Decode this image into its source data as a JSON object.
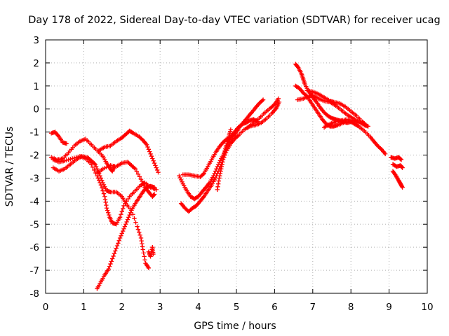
{
  "chart_data": {
    "type": "scatter",
    "title": "Day 178 of 2022, Sidereal Day-to-day VTEC variation (SDTVAR) for receiver ucag",
    "xlabel": "GPS time / hours",
    "ylabel": "SDTVAR / TECUs",
    "xlim": [
      0,
      10
    ],
    "ylim": [
      -8,
      3
    ],
    "xticks": [
      "0",
      "1",
      "2",
      "3",
      "4",
      "5",
      "6",
      "7",
      "8",
      "9",
      "10"
    ],
    "yticks": [
      "3",
      "2",
      "1",
      "0",
      "-1",
      "-2",
      "-3",
      "-4",
      "-5",
      "-6",
      "-7",
      "-8"
    ],
    "grid": true,
    "marker": "plus",
    "color": "#ff0000",
    "series": [
      {
        "points": [
          [
            0.15,
            -1.05
          ],
          [
            0.25,
            -1.0
          ],
          [
            0.35,
            -1.2
          ],
          [
            0.45,
            -1.45
          ],
          [
            0.55,
            -1.5
          ]
        ]
      },
      {
        "points": [
          [
            0.15,
            -2.1
          ],
          [
            0.3,
            -2.2
          ],
          [
            0.45,
            -2.15
          ],
          [
            0.6,
            -1.9
          ],
          [
            0.75,
            -1.6
          ],
          [
            0.9,
            -1.4
          ],
          [
            1.05,
            -1.3
          ],
          [
            1.2,
            -1.55
          ],
          [
            1.35,
            -1.8
          ],
          [
            1.5,
            -2.05
          ],
          [
            1.6,
            -2.35
          ],
          [
            1.7,
            -2.6
          ],
          [
            1.75,
            -2.7
          ],
          [
            1.8,
            -2.5
          ]
        ]
      },
      {
        "points": [
          [
            0.2,
            -2.55
          ],
          [
            0.35,
            -2.7
          ],
          [
            0.5,
            -2.6
          ],
          [
            0.65,
            -2.4
          ],
          [
            0.8,
            -2.2
          ],
          [
            0.95,
            -2.05
          ],
          [
            1.1,
            -2.1
          ],
          [
            1.2,
            -2.25
          ],
          [
            1.3,
            -2.4
          ],
          [
            1.4,
            -2.8
          ],
          [
            1.5,
            -3.2
          ],
          [
            1.6,
            -3.55
          ],
          [
            1.7,
            -3.6
          ],
          [
            1.85,
            -3.6
          ],
          [
            2.0,
            -3.8
          ],
          [
            2.1,
            -4.1
          ],
          [
            2.25,
            -4.4
          ],
          [
            2.4,
            -5.1
          ],
          [
            2.5,
            -5.6
          ],
          [
            2.55,
            -6.1
          ],
          [
            2.62,
            -6.7
          ],
          [
            2.7,
            -6.9
          ]
        ]
      },
      {
        "points": [
          [
            0.2,
            -2.2
          ],
          [
            0.35,
            -2.3
          ],
          [
            0.5,
            -2.25
          ],
          [
            0.7,
            -2.15
          ],
          [
            0.9,
            -2.05
          ],
          [
            1.05,
            -2.15
          ],
          [
            1.2,
            -2.4
          ],
          [
            1.35,
            -2.9
          ],
          [
            1.45,
            -3.3
          ],
          [
            1.55,
            -3.8
          ],
          [
            1.6,
            -4.3
          ],
          [
            1.68,
            -4.7
          ],
          [
            1.75,
            -4.95
          ],
          [
            1.85,
            -5.0
          ],
          [
            1.95,
            -4.7
          ],
          [
            2.05,
            -4.2
          ],
          [
            2.2,
            -3.8
          ],
          [
            2.35,
            -3.55
          ],
          [
            2.5,
            -3.3
          ],
          [
            2.6,
            -3.2
          ],
          [
            2.75,
            -3.4
          ],
          [
            2.9,
            -3.5
          ]
        ]
      },
      {
        "points": [
          [
            1.4,
            -1.8
          ],
          [
            1.55,
            -1.65
          ],
          [
            1.7,
            -1.6
          ],
          [
            1.85,
            -1.4
          ],
          [
            2.0,
            -1.25
          ],
          [
            2.1,
            -1.1
          ],
          [
            2.2,
            -0.95
          ],
          [
            2.3,
            -1.05
          ],
          [
            2.45,
            -1.2
          ],
          [
            2.55,
            -1.35
          ],
          [
            2.65,
            -1.55
          ],
          [
            2.75,
            -1.95
          ],
          [
            2.85,
            -2.35
          ],
          [
            2.95,
            -2.75
          ]
        ]
      },
      {
        "points": [
          [
            1.35,
            -2.8
          ],
          [
            1.5,
            -2.6
          ],
          [
            1.7,
            -2.45
          ],
          [
            1.85,
            -2.5
          ],
          [
            2.0,
            -2.35
          ],
          [
            2.15,
            -2.3
          ],
          [
            2.25,
            -2.45
          ],
          [
            2.35,
            -2.6
          ],
          [
            2.5,
            -3.05
          ],
          [
            2.6,
            -3.4
          ],
          [
            2.7,
            -3.6
          ],
          [
            2.8,
            -3.8
          ],
          [
            2.85,
            -3.7
          ]
        ]
      },
      {
        "points": [
          [
            1.35,
            -7.8
          ],
          [
            1.45,
            -7.5
          ],
          [
            1.55,
            -7.2
          ],
          [
            1.65,
            -6.95
          ],
          [
            1.75,
            -6.5
          ],
          [
            1.85,
            -6.05
          ],
          [
            1.95,
            -5.6
          ],
          [
            2.05,
            -5.2
          ],
          [
            2.15,
            -4.8
          ],
          [
            2.25,
            -4.4
          ],
          [
            2.35,
            -4.1
          ],
          [
            2.45,
            -3.85
          ],
          [
            2.55,
            -3.6
          ],
          [
            2.65,
            -3.4
          ],
          [
            2.75,
            -3.35
          ],
          [
            2.85,
            -3.4
          ]
        ]
      },
      {
        "points": [
          [
            2.7,
            -6.2
          ],
          [
            2.75,
            -6.4
          ],
          [
            2.8,
            -6.0
          ],
          [
            2.82,
            -6.3
          ]
        ]
      },
      {
        "points": [
          [
            3.5,
            -2.9
          ],
          [
            3.6,
            -3.25
          ],
          [
            3.7,
            -3.55
          ],
          [
            3.8,
            -3.8
          ],
          [
            3.9,
            -3.9
          ],
          [
            4.0,
            -3.8
          ],
          [
            4.1,
            -3.6
          ],
          [
            4.2,
            -3.4
          ],
          [
            4.3,
            -3.2
          ],
          [
            4.4,
            -2.9
          ],
          [
            4.5,
            -2.5
          ],
          [
            4.6,
            -2.15
          ],
          [
            4.7,
            -1.85
          ],
          [
            4.8,
            -1.45
          ],
          [
            4.9,
            -1.2
          ],
          [
            5.0,
            -1.0
          ],
          [
            5.1,
            -0.75
          ],
          [
            5.2,
            -0.55
          ],
          [
            5.3,
            -0.35
          ],
          [
            5.4,
            -0.15
          ],
          [
            5.5,
            0.05
          ],
          [
            5.6,
            0.25
          ],
          [
            5.7,
            0.4
          ]
        ]
      },
      {
        "points": [
          [
            3.55,
            -4.1
          ],
          [
            3.65,
            -4.3
          ],
          [
            3.75,
            -4.45
          ],
          [
            3.85,
            -4.3
          ],
          [
            3.95,
            -4.2
          ],
          [
            4.05,
            -4.0
          ],
          [
            4.15,
            -3.8
          ],
          [
            4.25,
            -3.55
          ],
          [
            4.35,
            -3.3
          ],
          [
            4.45,
            -3.0
          ],
          [
            4.55,
            -2.6
          ],
          [
            4.65,
            -2.2
          ],
          [
            4.75,
            -1.8
          ],
          [
            4.85,
            -1.5
          ],
          [
            4.95,
            -1.3
          ],
          [
            5.05,
            -1.15
          ],
          [
            5.2,
            -0.9
          ],
          [
            5.35,
            -0.75
          ],
          [
            5.5,
            -0.7
          ],
          [
            5.65,
            -0.6
          ],
          [
            5.8,
            -0.4
          ],
          [
            5.95,
            -0.15
          ],
          [
            6.05,
            0.05
          ],
          [
            6.12,
            0.3
          ]
        ]
      },
      {
        "points": [
          [
            3.6,
            -2.85
          ],
          [
            3.75,
            -2.85
          ],
          [
            3.9,
            -2.9
          ],
          [
            4.05,
            -2.95
          ],
          [
            4.15,
            -2.8
          ],
          [
            4.25,
            -2.5
          ],
          [
            4.35,
            -2.2
          ],
          [
            4.45,
            -1.9
          ],
          [
            4.55,
            -1.65
          ],
          [
            4.65,
            -1.45
          ],
          [
            4.75,
            -1.3
          ],
          [
            4.85,
            -1.2
          ],
          [
            4.95,
            -1.0
          ],
          [
            5.05,
            -0.8
          ],
          [
            5.15,
            -0.65
          ],
          [
            5.25,
            -0.6
          ],
          [
            5.35,
            -0.5
          ],
          [
            5.45,
            -0.45
          ],
          [
            5.55,
            -0.55
          ]
        ]
      },
      {
        "points": [
          [
            4.5,
            -3.5
          ],
          [
            4.55,
            -3.0
          ],
          [
            4.6,
            -2.6
          ],
          [
            4.65,
            -2.2
          ],
          [
            4.7,
            -1.8
          ],
          [
            4.75,
            -1.5
          ],
          [
            4.8,
            -1.2
          ],
          [
            4.85,
            -0.9
          ]
        ]
      },
      {
        "points": [
          [
            5.3,
            -0.8
          ],
          [
            5.45,
            -0.6
          ],
          [
            5.6,
            -0.4
          ],
          [
            5.75,
            -0.15
          ],
          [
            5.9,
            0.05
          ],
          [
            6.0,
            0.2
          ],
          [
            6.1,
            0.45
          ]
        ]
      },
      {
        "points": [
          [
            6.55,
            1.95
          ],
          [
            6.62,
            1.8
          ],
          [
            6.7,
            1.55
          ],
          [
            6.75,
            1.3
          ],
          [
            6.8,
            1.05
          ],
          [
            6.9,
            0.75
          ],
          [
            7.0,
            0.5
          ],
          [
            7.1,
            0.3
          ],
          [
            7.2,
            0.05
          ],
          [
            7.3,
            -0.15
          ],
          [
            7.4,
            -0.3
          ],
          [
            7.5,
            -0.4
          ],
          [
            7.6,
            -0.45
          ],
          [
            7.7,
            -0.5
          ],
          [
            7.8,
            -0.55
          ],
          [
            7.9,
            -0.6
          ],
          [
            8.0,
            -0.55
          ],
          [
            8.1,
            -0.65
          ],
          [
            8.2,
            -0.75
          ],
          [
            8.35,
            -0.95
          ],
          [
            8.5,
            -1.2
          ],
          [
            8.6,
            -1.4
          ],
          [
            8.7,
            -1.6
          ],
          [
            8.8,
            -1.75
          ],
          [
            8.9,
            -1.95
          ]
        ]
      },
      {
        "points": [
          [
            6.55,
            1.0
          ],
          [
            6.65,
            0.9
          ],
          [
            6.75,
            0.7
          ],
          [
            6.85,
            0.55
          ],
          [
            6.95,
            0.3
          ],
          [
            7.05,
            0.05
          ],
          [
            7.15,
            -0.2
          ],
          [
            7.25,
            -0.45
          ],
          [
            7.35,
            -0.65
          ],
          [
            7.45,
            -0.75
          ],
          [
            7.55,
            -0.75
          ],
          [
            7.65,
            -0.7
          ],
          [
            7.8,
            -0.6
          ]
        ]
      },
      {
        "points": [
          [
            6.6,
            0.4
          ],
          [
            6.75,
            0.45
          ],
          [
            6.9,
            0.55
          ],
          [
            7.0,
            0.6
          ],
          [
            7.15,
            0.45
          ],
          [
            7.3,
            0.35
          ],
          [
            7.45,
            0.3
          ],
          [
            7.6,
            0.15
          ],
          [
            7.75,
            -0.05
          ],
          [
            7.9,
            -0.25
          ],
          [
            8.05,
            -0.4
          ],
          [
            8.2,
            -0.55
          ],
          [
            8.35,
            -0.7
          ],
          [
            8.45,
            -0.75
          ]
        ]
      },
      {
        "points": [
          [
            6.85,
            0.8
          ],
          [
            7.0,
            0.75
          ],
          [
            7.15,
            0.65
          ],
          [
            7.3,
            0.5
          ],
          [
            7.45,
            0.35
          ],
          [
            7.55,
            0.3
          ],
          [
            7.7,
            0.25
          ],
          [
            7.85,
            0.1
          ],
          [
            8.0,
            -0.1
          ],
          [
            8.15,
            -0.3
          ],
          [
            8.3,
            -0.55
          ],
          [
            8.4,
            -0.7
          ]
        ]
      },
      {
        "points": [
          [
            7.3,
            -0.8
          ],
          [
            7.45,
            -0.65
          ],
          [
            7.6,
            -0.55
          ],
          [
            7.75,
            -0.5
          ],
          [
            7.9,
            -0.45
          ],
          [
            8.05,
            -0.5
          ],
          [
            8.2,
            -0.6
          ]
        ]
      },
      {
        "points": [
          [
            9.05,
            -2.1
          ],
          [
            9.15,
            -2.15
          ],
          [
            9.25,
            -2.1
          ],
          [
            9.32,
            -2.2
          ]
        ]
      },
      {
        "points": [
          [
            9.1,
            -2.4
          ],
          [
            9.2,
            -2.5
          ],
          [
            9.3,
            -2.45
          ],
          [
            9.35,
            -2.55
          ]
        ]
      },
      {
        "points": [
          [
            9.1,
            -2.7
          ],
          [
            9.18,
            -2.9
          ],
          [
            9.25,
            -3.1
          ],
          [
            9.3,
            -3.25
          ],
          [
            9.35,
            -3.4
          ]
        ]
      }
    ]
  }
}
